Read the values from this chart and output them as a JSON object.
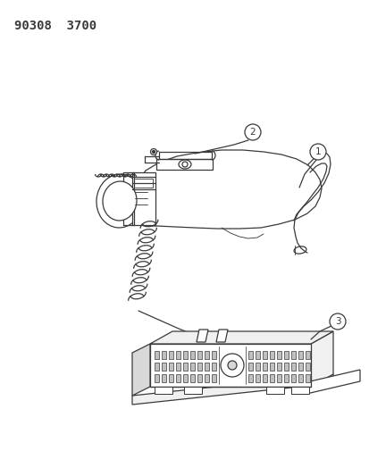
{
  "title": "90308  3700",
  "bg_color": "#ffffff",
  "line_color": "#3a3a3a",
  "fill_light": "#f0f0f0",
  "fill_mid": "#d8d8d8",
  "fill_dark": "#c0c0c0",
  "lw": 0.9,
  "fig_width": 4.14,
  "fig_height": 5.33,
  "dpi": 100,
  "label1": "1",
  "label2": "2",
  "label3": "3"
}
